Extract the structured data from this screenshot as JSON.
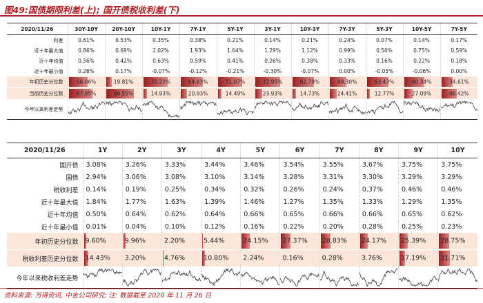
{
  "title": "图49:国债期限利差(上); 国开债税收利差(下)",
  "source": "资料来源: 万得资讯, 中金公司研究; 注: 数据截至 2020 年 11 月 26 日",
  "colors": {
    "accent": "#b01e23",
    "bar": "#9c2020",
    "highlight": "#fce6da"
  },
  "top_table": {
    "date": "2020/11/26",
    "columns": [
      "30Y-10Y",
      "20Y-10Y",
      "10Y-1Y",
      "7Y-1Y",
      "5Y-1Y",
      "3Y-1Y",
      "10Y-3Y",
      "7Y-3Y",
      "5Y-3Y",
      "10Y-5Y",
      "7Y-5Y"
    ],
    "rows": [
      {
        "label": "利差",
        "values": [
          "0.61%",
          "0.53%",
          "0.35%",
          "0.38%",
          "0.21%",
          "0.14%",
          "0.21%",
          "0.24%",
          "0.07%",
          "0.14%",
          "0.17%"
        ]
      },
      {
        "label": "近十年最大值",
        "values": [
          "0.86%",
          "0.69%",
          "2.02%",
          "1.93%",
          "1.64%",
          "1.29%",
          "1.12%",
          "0.99%",
          "0.50%",
          "0.75%",
          "0.59%"
        ]
      },
      {
        "label": "近十年均值",
        "values": [
          "0.56%",
          "0.42%",
          "0.63%",
          "0.59%",
          "0.41%",
          "0.26%",
          "0.38%",
          "0.33%",
          "0.16%",
          "0.22%",
          "0.18%"
        ]
      },
      {
        "label": "近十年最小值",
        "values": [
          "0.26%",
          "0.17%",
          "-0.07%",
          "-0.12%",
          "-0.21%",
          "-0.30%",
          "-0.07%",
          "0.00%",
          "-0.05%",
          "-0.06%",
          "0.00%"
        ]
      }
    ],
    "pct_rows": [
      {
        "label": "年初历史分位数",
        "values": [
          56.06,
          19.81,
          70.23,
          64.63,
          71.07,
          72.95,
          62.79,
          49.3,
          63.43,
          60.34,
          34.61
        ],
        "texts": [
          "56.06%",
          "19.81%",
          "70.23%",
          "64.63%",
          "71.07%",
          "72.95%",
          "62.79%",
          "49.30%",
          "63.43%",
          "60.34%",
          "34.61%"
        ]
      },
      {
        "label": "当前历史分位数",
        "values": [
          67.95,
          80.55,
          14.93,
          20.93,
          14.49,
          23.93,
          14.73,
          24.41,
          12.77,
          27.09,
          46.42
        ],
        "texts": [
          "67.95%",
          "80.55%",
          "14.93%",
          "20.93%",
          "14.49%",
          "23.93%",
          "14.73%",
          "24.41%",
          "12.77%",
          "27.09%",
          "46.42%"
        ]
      }
    ],
    "trend_label": "今年以来利差走势"
  },
  "bottom_table": {
    "date": "2020/11/26",
    "columns": [
      "1Y",
      "2Y",
      "3Y",
      "4Y",
      "5Y",
      "6Y",
      "7Y",
      "8Y",
      "9Y",
      "10Y"
    ],
    "rows": [
      {
        "label": "国开债",
        "values": [
          "3.08%",
          "3.26%",
          "3.33%",
          "3.44%",
          "3.46%",
          "3.54%",
          "3.55%",
          "3.67%",
          "3.75%",
          "3.75%"
        ]
      },
      {
        "label": "国债",
        "values": [
          "2.94%",
          "3.06%",
          "3.08%",
          "3.10%",
          "3.14%",
          "3.28%",
          "3.31%",
          "3.30%",
          "3.29%",
          "3.29%"
        ]
      },
      {
        "label": "税收利差",
        "values": [
          "0.14%",
          "0.19%",
          "0.25%",
          "0.34%",
          "0.32%",
          "0.26%",
          "0.24%",
          "0.37%",
          "0.46%",
          "0.46%"
        ]
      },
      {
        "label": "近十年最大值",
        "values": [
          "1.84%",
          "1.77%",
          "1.63%",
          "1.39%",
          "1.46%",
          "1.27%",
          "1.35%",
          "1.33%",
          "1.29%",
          "1.35%"
        ]
      },
      {
        "label": "近十年均值",
        "values": [
          "0.50%",
          "0.64%",
          "0.62%",
          "0.64%",
          "0.66%",
          "0.65%",
          "0.66%",
          "0.66%",
          "0.65%",
          "0.62%"
        ]
      },
      {
        "label": "近十年最小值",
        "values": [
          "0.01%",
          "0.04%",
          "0.10%",
          "0.12%",
          "0.16%",
          "0.22%",
          "0.20%",
          "0.28%",
          "0.25%",
          "0.23%"
        ]
      }
    ],
    "pct_rows": [
      {
        "label": "年初历史分位数",
        "values": [
          9.6,
          9.96,
          2.2,
          5.44,
          24.15,
          27.37,
          28.83,
          24.17,
          25.39,
          28.75
        ],
        "texts": [
          "9.60%",
          "9.96%",
          "2.20%",
          "5.44%",
          "24.15%",
          "27.37%",
          "28.83%",
          "24.17%",
          "25.39%",
          "28.75%"
        ]
      },
      {
        "label": "税收利差历史分位数",
        "values": [
          14.43,
          3.2,
          4.76,
          10.8,
          2.24,
          0.16,
          0.28,
          3.76,
          17.19,
          31.71
        ],
        "texts": [
          "14.43%",
          "3.20%",
          "4.76%",
          "10.80%",
          "2.24%",
          "0.16%",
          "0.28%",
          "3.76%",
          "17.19%",
          "31.71%"
        ]
      }
    ],
    "trend_label": "今年以来税收利差走势"
  }
}
